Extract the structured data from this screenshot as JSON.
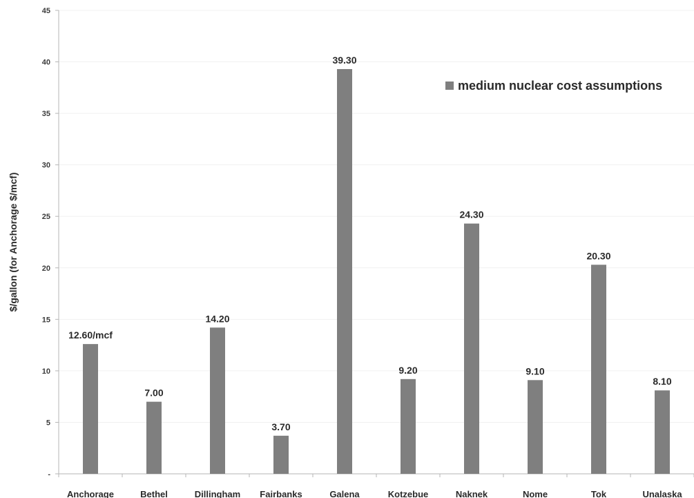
{
  "chart_data": {
    "type": "bar",
    "title": "",
    "xlabel": "",
    "ylabel": "$/gallon (for Anchorage $/mcf)",
    "ylim": [
      0,
      45
    ],
    "yticks": [
      "45",
      "40",
      "35",
      "30",
      "25",
      "20",
      "15",
      "10",
      "5",
      "-"
    ],
    "grid": true,
    "legend_position": "top-right",
    "categories": [
      "Anchorage",
      "Bethel",
      "Dillingham",
      "Fairbanks",
      "Galena",
      "Kotzebue",
      "Naknek",
      "Nome",
      "Tok",
      "Unalaska"
    ],
    "series": [
      {
        "name": "medium nuclear cost assumptions",
        "color": "#7f7f7f",
        "values": [
          12.6,
          7.0,
          14.2,
          3.7,
          39.3,
          9.2,
          24.3,
          9.1,
          20.3,
          8.1
        ],
        "labels": [
          "12.60/mcf",
          "7.00",
          "14.20",
          "3.70",
          "39.30",
          "9.20",
          "24.30",
          "9.10",
          "20.30",
          "8.10"
        ]
      }
    ]
  }
}
